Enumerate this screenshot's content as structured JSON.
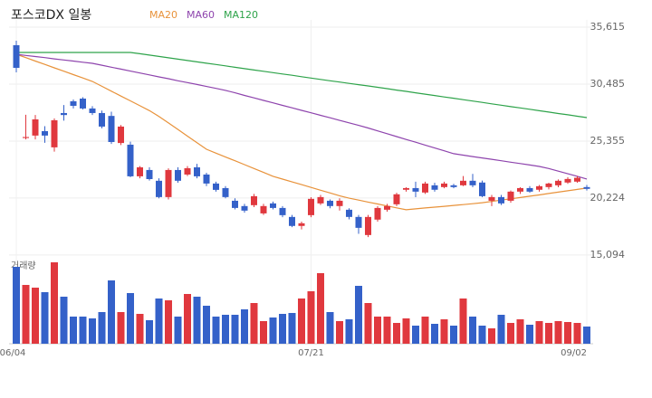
{
  "chart_data": {
    "type": "candlestick",
    "title": "포스코DX 일봉",
    "volume_label": "거래량",
    "up_color": "#e0383e",
    "down_color": "#3461c9",
    "categories": [
      "06/04",
      null,
      null,
      null,
      null,
      null,
      null,
      null,
      null,
      null,
      null,
      null,
      null,
      null,
      null,
      null,
      null,
      null,
      null,
      null,
      null,
      null,
      null,
      null,
      null,
      null,
      null,
      null,
      null,
      null,
      null,
      "07/21",
      null,
      null,
      null,
      null,
      null,
      null,
      null,
      null,
      null,
      null,
      null,
      null,
      null,
      null,
      null,
      null,
      null,
      null,
      null,
      null,
      null,
      null,
      null,
      null,
      null,
      null,
      null,
      null,
      "09/02"
    ],
    "open": [
      33990,
      25630,
      25850,
      26250,
      24790,
      27880,
      28940,
      29180,
      28290,
      27880,
      27620,
      25180,
      25030,
      22180,
      22750,
      21780,
      20310,
      22750,
      22340,
      22990,
      22340,
      21530,
      21120,
      19980,
      19500,
      19580,
      18840,
      19740,
      19330,
      18520,
      17710,
      18680,
      19740,
      19980,
      19500,
      19170,
      18520,
      16890,
      18280,
      19170,
      19660,
      20970,
      21120,
      20720,
      21370,
      21210,
      21370,
      21370,
      21780,
      21620,
      19980,
      20310,
      19980,
      20800,
      21120,
      20970,
      21210,
      21370,
      21620,
      21700,
      21210
    ],
    "high": [
      34400,
      27720,
      27700,
      26700,
      27400,
      28600,
      29100,
      29300,
      28500,
      28100,
      28000,
      26800,
      25300,
      23100,
      23000,
      22000,
      22900,
      23000,
      23100,
      23300,
      22500,
      21700,
      21300,
      20200,
      19700,
      20600,
      19700,
      19900,
      19500,
      18700,
      18100,
      20300,
      20500,
      20100,
      20200,
      19300,
      18700,
      18700,
      19500,
      19700,
      20700,
      21200,
      21700,
      21700,
      21600,
      21700,
      21500,
      22200,
      22400,
      21800,
      20500,
      20500,
      20900,
      21200,
      21300,
      21400,
      21600,
      21900,
      22100,
      22200,
      21400
    ],
    "low": [
      31540,
      25500,
      25500,
      25200,
      24400,
      27200,
      28300,
      28200,
      27700,
      26500,
      25100,
      25000,
      22100,
      22000,
      21800,
      20200,
      20100,
      21600,
      22200,
      22000,
      21300,
      20800,
      20200,
      19200,
      18900,
      19400,
      18700,
      19200,
      18500,
      17600,
      17400,
      18500,
      19600,
      19300,
      19100,
      18300,
      17000,
      16700,
      18100,
      19000,
      19500,
      20800,
      20300,
      20600,
      20800,
      21100,
      21100,
      21300,
      21200,
      20300,
      19500,
      19600,
      19800,
      20600,
      20700,
      20800,
      21000,
      21200,
      21500,
      21600,
      20900
    ],
    "close": [
      31950,
      25720,
      27310,
      25850,
      27230,
      27700,
      28530,
      28290,
      27880,
      26660,
      25270,
      26660,
      22180,
      22990,
      21930,
      20310,
      22750,
      21780,
      22910,
      22180,
      21530,
      20960,
      20310,
      19330,
      19090,
      20390,
      19500,
      19330,
      18680,
      17710,
      17950,
      20150,
      20310,
      19500,
      19980,
      18520,
      17540,
      18520,
      19330,
      19500,
      20560,
      21120,
      20800,
      21530,
      20970,
      21530,
      21210,
      21780,
      21370,
      20390,
      20310,
      19740,
      20800,
      21120,
      20800,
      21290,
      21530,
      21780,
      21940,
      22050,
      21050
    ],
    "volume": [
      85,
      65,
      62,
      57,
      90,
      52,
      30,
      30,
      28,
      35,
      70,
      35,
      56,
      33,
      26,
      50,
      48,
      30,
      55,
      52,
      42,
      30,
      32,
      32,
      38,
      45,
      25,
      29,
      33,
      34,
      50,
      58,
      78,
      35,
      25,
      27,
      64,
      45,
      30,
      30,
      23,
      28,
      20,
      30,
      22,
      27,
      20,
      50,
      30,
      20,
      17,
      32,
      23,
      27,
      21,
      25,
      23,
      25,
      24,
      23,
      19
    ],
    "series": [
      {
        "name": "MA20",
        "color": "#e8923a",
        "values": [
          33170,
          32870,
          32560,
          32260,
          31950,
          31650,
          31340,
          31040,
          30730,
          30290,
          29850,
          29410,
          28980,
          28540,
          28100,
          27580,
          26990,
          26400,
          25800,
          25210,
          24620,
          24270,
          23920,
          23580,
          23230,
          22880,
          22530,
          22180,
          21930,
          21680,
          21430,
          21180,
          20930,
          20680,
          20430,
          20210,
          20040,
          19860,
          19690,
          19510,
          19340,
          19170,
          19250,
          19330,
          19400,
          19480,
          19560,
          19630,
          19710,
          19800,
          19920,
          20040,
          20150,
          20270,
          20390,
          20500,
          20630,
          20760,
          20880,
          21000,
          21120
        ]
      },
      {
        "name": "MA60",
        "color": "#8e44ad",
        "values": [
          33170,
          33070,
          32970,
          32870,
          32760,
          32660,
          32560,
          32460,
          32360,
          32190,
          32010,
          31840,
          31660,
          31490,
          31320,
          31140,
          30970,
          30790,
          30620,
          30450,
          30270,
          30100,
          29920,
          29700,
          29470,
          29250,
          29020,
          28800,
          28570,
          28350,
          28120,
          27900,
          27670,
          27450,
          27220,
          27000,
          26770,
          26530,
          26270,
          26020,
          25760,
          25500,
          25250,
          24990,
          24730,
          24480,
          24220,
          24090,
          23960,
          23840,
          23710,
          23580,
          23450,
          23330,
          23200,
          23070,
          22880,
          22650,
          22410,
          22180,
          21940
        ]
      },
      {
        "name": "MA120",
        "color": "#2ea34a",
        "values": [
          33340,
          33340,
          33340,
          33340,
          33340,
          33340,
          33340,
          33340,
          33340,
          33340,
          33340,
          33340,
          33340,
          33220,
          33100,
          32980,
          32860,
          32730,
          32610,
          32490,
          32370,
          32250,
          32130,
          32000,
          31880,
          31760,
          31640,
          31520,
          31400,
          31280,
          31150,
          31030,
          30910,
          30790,
          30670,
          30550,
          30440,
          30320,
          30200,
          30080,
          29950,
          29830,
          29700,
          29580,
          29460,
          29330,
          29210,
          29080,
          28960,
          28840,
          28710,
          28590,
          28460,
          28340,
          28220,
          28090,
          27970,
          27840,
          27720,
          27590,
          27470
        ]
      }
    ],
    "ylim": [
      7100,
      36270
    ],
    "yticks": [
      {
        "value": 15094,
        "label": "15,094"
      },
      {
        "value": 20224,
        "label": "20,224"
      },
      {
        "value": 25355,
        "label": "25,355"
      },
      {
        "value": 30485,
        "label": "30,485"
      },
      {
        "value": 35615,
        "label": "35,615"
      }
    ],
    "grid": true
  }
}
